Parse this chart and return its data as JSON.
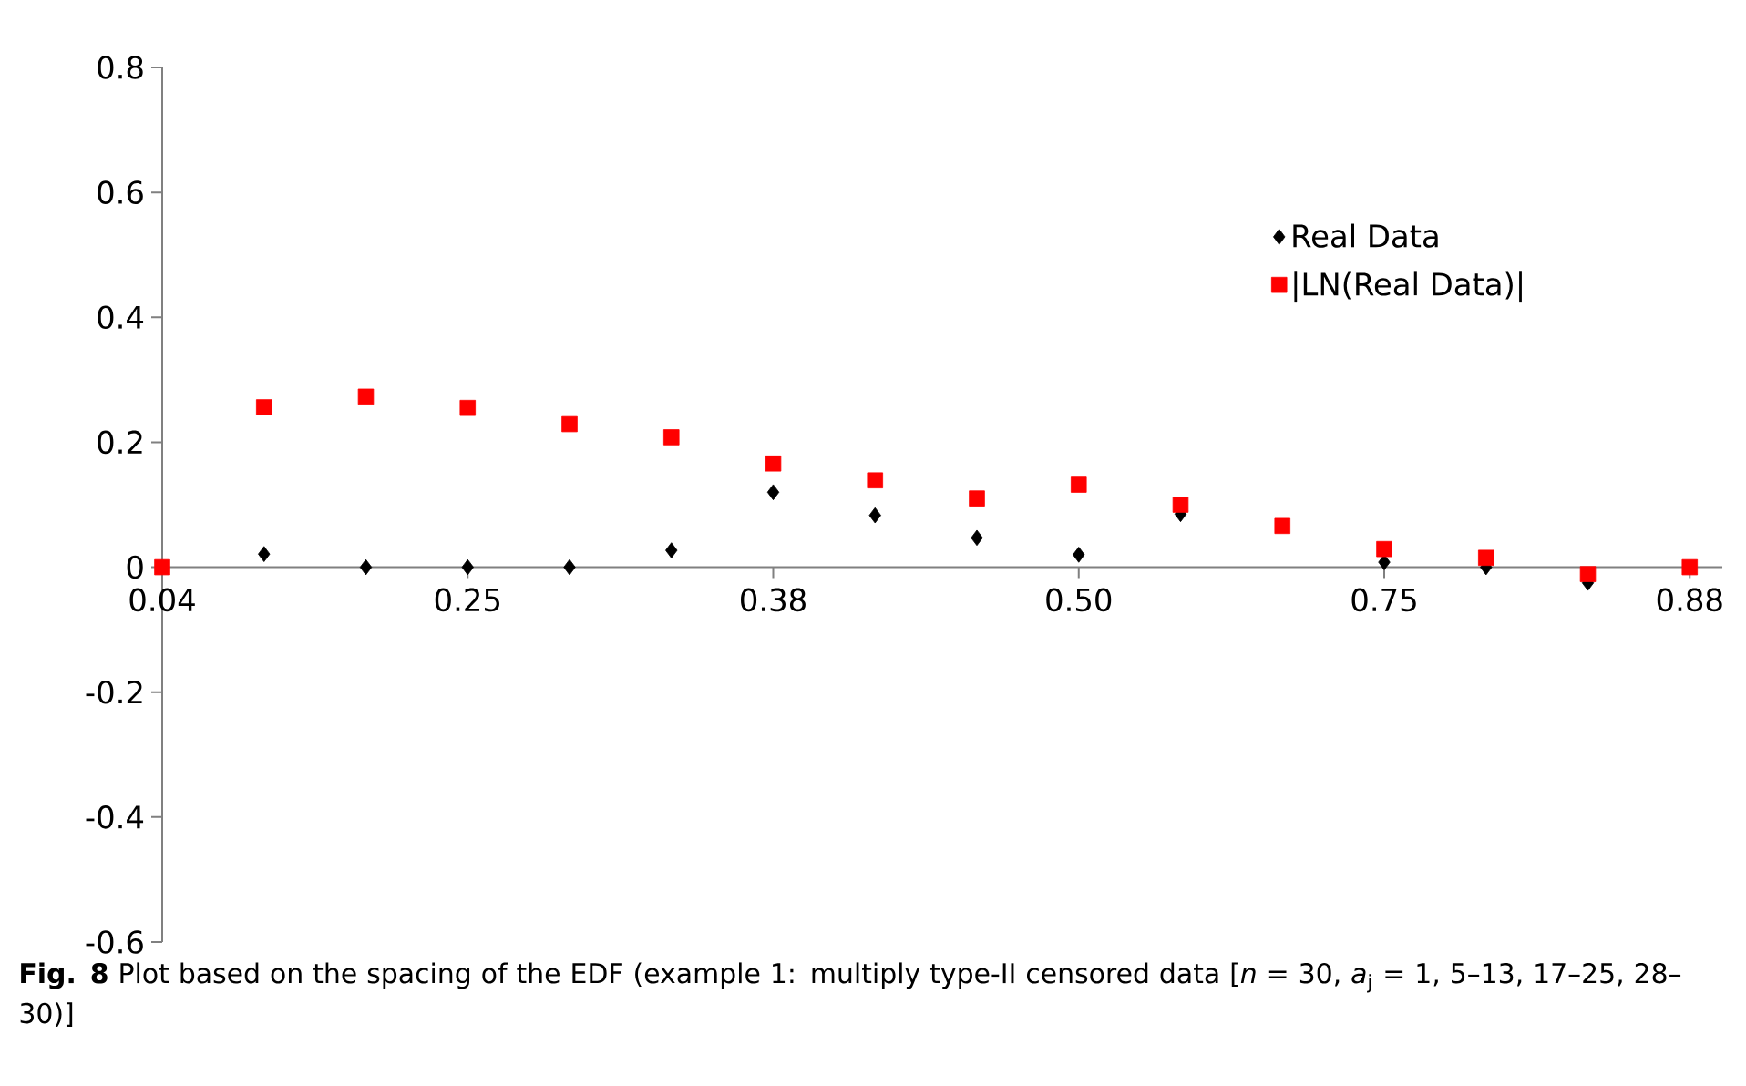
{
  "chart_data": {
    "type": "scatter",
    "categories": [
      "0.04",
      null,
      null,
      "0.25",
      null,
      null,
      "0.38",
      null,
      null,
      "0.50",
      null,
      null,
      "0.75",
      null,
      null,
      "0.88"
    ],
    "series": [
      {
        "name": "Real Data",
        "color": "#000000",
        "marker": "diamond",
        "values": [
          null,
          0.021,
          0,
          0,
          0,
          0.027,
          0.12,
          0.083,
          0.047,
          0.02,
          0.085,
          null,
          0.008,
          0,
          -0.025,
          null
        ]
      },
      {
        "name": "|LN(Real Data)|",
        "color": "#ff0000",
        "marker": "square",
        "values": [
          0,
          0.256,
          0.273,
          0.255,
          0.229,
          0.208,
          0.166,
          0.139,
          0.11,
          0.132,
          0.1,
          0.066,
          0.029,
          0.015,
          -0.011,
          0
        ]
      }
    ],
    "ylim": [
      -0.6,
      0.8
    ],
    "yticks": [
      -0.6,
      -0.4,
      -0.2,
      0,
      0.2,
      0.4,
      0.6,
      0.8
    ],
    "grid": false,
    "legend": "top right",
    "annotations": [
      "**Fig. 8**  Plot based on the spacing of the EDF (example 1: multiply type-II censored data [*n* = 30, *a*$_{j}$ = 1, 5–13, 17–25, 28–30)]"
    ]
  }
}
